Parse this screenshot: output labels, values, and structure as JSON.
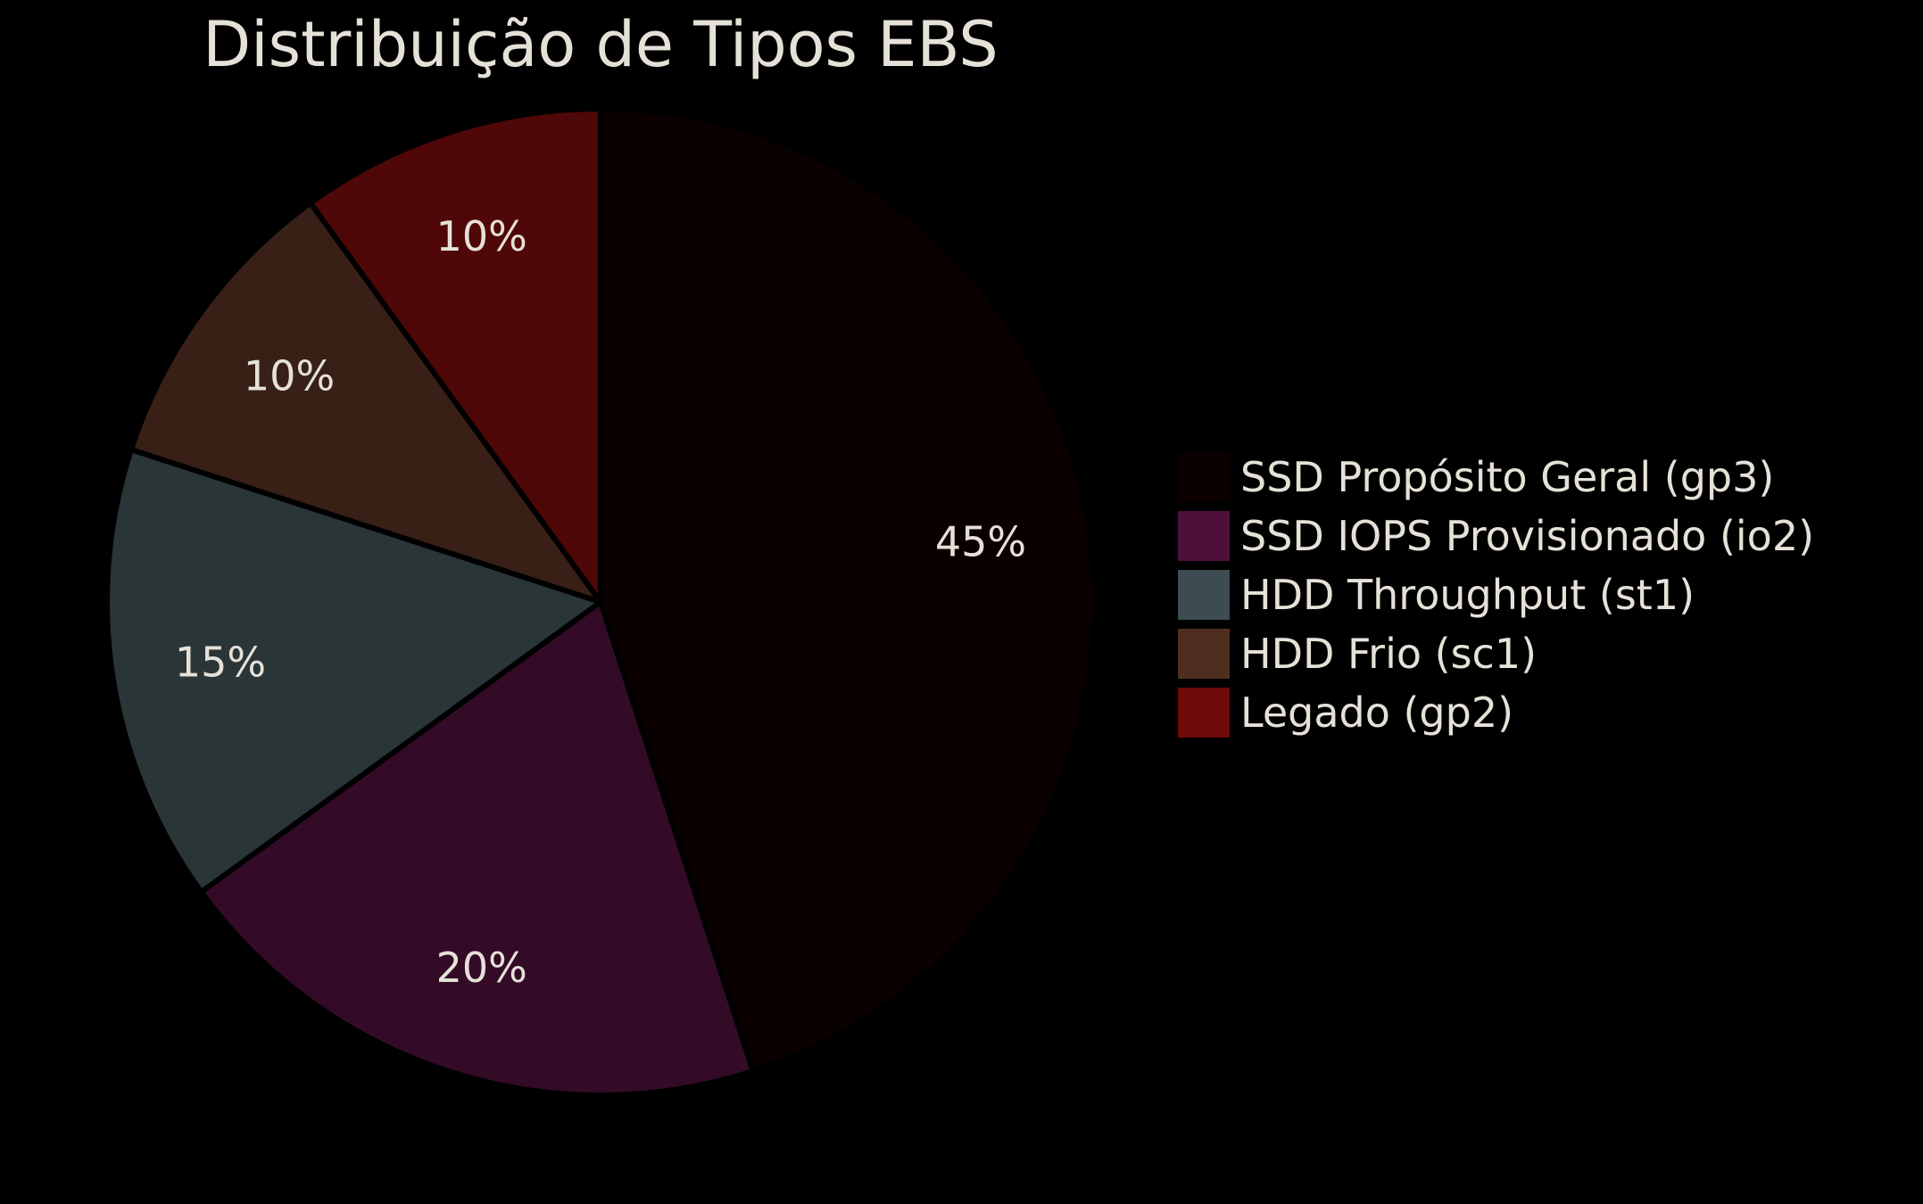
{
  "chart_data": {
    "type": "pie",
    "title": "Distribuição de Tipos EBS",
    "start_angle_deg": 90,
    "direction": "clockwise",
    "legend_placement": "right",
    "slices": [
      {
        "label": "SSD Propósito Geral (gp3)",
        "value": 45,
        "display": "45%",
        "color": "#0b0000",
        "legend_color": "#0b0000"
      },
      {
        "label": "SSD IOPS Provisionado (io2)",
        "value": 20,
        "display": "20%",
        "color": "#330b26",
        "legend_color": "#4d1038"
      },
      {
        "label": "HDD Throughput (st1)",
        "value": 15,
        "display": "15%",
        "color": "#2a3537",
        "legend_color": "#3d4c50"
      },
      {
        "label": "HDD Frio (sc1)",
        "value": 10,
        "display": "10%",
        "color": "#382016",
        "legend_color": "#502e1f"
      },
      {
        "label": "Legado (gp2)",
        "value": 10,
        "display": "10%",
        "color": "#4f0707",
        "legend_color": "#6e0a0a"
      }
    ]
  }
}
